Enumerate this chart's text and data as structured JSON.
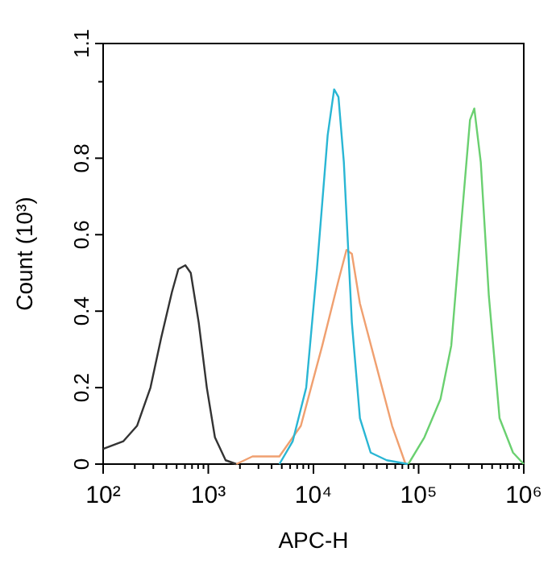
{
  "chart_data": {
    "type": "line",
    "xlabel": "APC-H",
    "ylabel": "Count (10³)",
    "log": "x",
    "xlim": [
      100,
      1000000
    ],
    "ylim": [
      0,
      1.1
    ],
    "xticks": [
      {
        "value": 100,
        "label": "10²"
      },
      {
        "value": 200,
        "label": null
      },
      {
        "value": 300,
        "label": null
      },
      {
        "value": 400,
        "label": null
      },
      {
        "value": 500,
        "label": null
      },
      {
        "value": 600,
        "label": null
      },
      {
        "value": 700,
        "label": null
      },
      {
        "value": 800,
        "label": null
      },
      {
        "value": 900,
        "label": null
      },
      {
        "value": 1000,
        "label": "10³"
      },
      {
        "value": 2000,
        "label": null
      },
      {
        "value": 3000,
        "label": null
      },
      {
        "value": 4000,
        "label": null
      },
      {
        "value": 5000,
        "label": null
      },
      {
        "value": 6000,
        "label": null
      },
      {
        "value": 7000,
        "label": null
      },
      {
        "value": 8000,
        "label": null
      },
      {
        "value": 9000,
        "label": null
      },
      {
        "value": 10000,
        "label": "10⁴"
      },
      {
        "value": 20000,
        "label": null
      },
      {
        "value": 30000,
        "label": null
      },
      {
        "value": 40000,
        "label": null
      },
      {
        "value": 50000,
        "label": null
      },
      {
        "value": 60000,
        "label": null
      },
      {
        "value": 70000,
        "label": null
      },
      {
        "value": 80000,
        "label": null
      },
      {
        "value": 90000,
        "label": null
      },
      {
        "value": 100000,
        "label": "10⁵"
      },
      {
        "value": 200000,
        "label": null
      },
      {
        "value": 300000,
        "label": null
      },
      {
        "value": 400000,
        "label": null
      },
      {
        "value": 500000,
        "label": null
      },
      {
        "value": 600000,
        "label": null
      },
      {
        "value": 700000,
        "label": null
      },
      {
        "value": 800000,
        "label": null
      },
      {
        "value": 900000,
        "label": null
      },
      {
        "value": 1000000,
        "label": "10⁶"
      }
    ],
    "yticks": [
      0,
      0.2,
      0.4,
      0.6,
      0.8,
      {
        "value": 1,
        "label": null
      },
      1.1
    ],
    "grid": false,
    "marker": "none",
    "line_style": "solid",
    "series": [
      {
        "color": "#333333",
        "x": [
          100,
          156,
          210,
          282,
          356,
          451,
          519,
          605,
          681,
          811,
          968,
          1156,
          1462,
          1849
        ],
        "values": [
          0.04,
          0.06,
          0.1,
          0.2,
          0.33,
          0.45,
          0.51,
          0.52,
          0.5,
          0.37,
          0.2,
          0.07,
          0.01,
          0
        ]
      },
      {
        "color": "#f0a070",
        "x": [
          1849,
          2630,
          4743,
          7590,
          12130,
          17290,
          20610,
          23190,
          27670,
          39380,
          55980,
          75160
        ],
        "values": [
          0,
          0.02,
          0.02,
          0.1,
          0.31,
          0.48,
          0.56,
          0.55,
          0.42,
          0.26,
          0.1,
          0
        ]
      },
      {
        "color": "#29b6d4",
        "x": [
          4743,
          6353,
          8531,
          10790,
          13650,
          15730,
          17290,
          19450,
          23190,
          27670,
          35000,
          49800,
          79800
        ],
        "values": [
          0,
          0.06,
          0.2,
          0.51,
          0.86,
          0.98,
          0.96,
          0.79,
          0.37,
          0.12,
          0.03,
          0.01,
          0
        ]
      },
      {
        "color": "#6ad070",
        "x": [
          79800,
          113500,
          161500,
          204400,
          258300,
          308100,
          338500,
          390000,
          465500,
          588500,
          790300,
          1000000
        ],
        "values": [
          0,
          0.07,
          0.17,
          0.31,
          0.65,
          0.9,
          0.93,
          0.79,
          0.44,
          0.12,
          0.03,
          0
        ]
      }
    ]
  }
}
